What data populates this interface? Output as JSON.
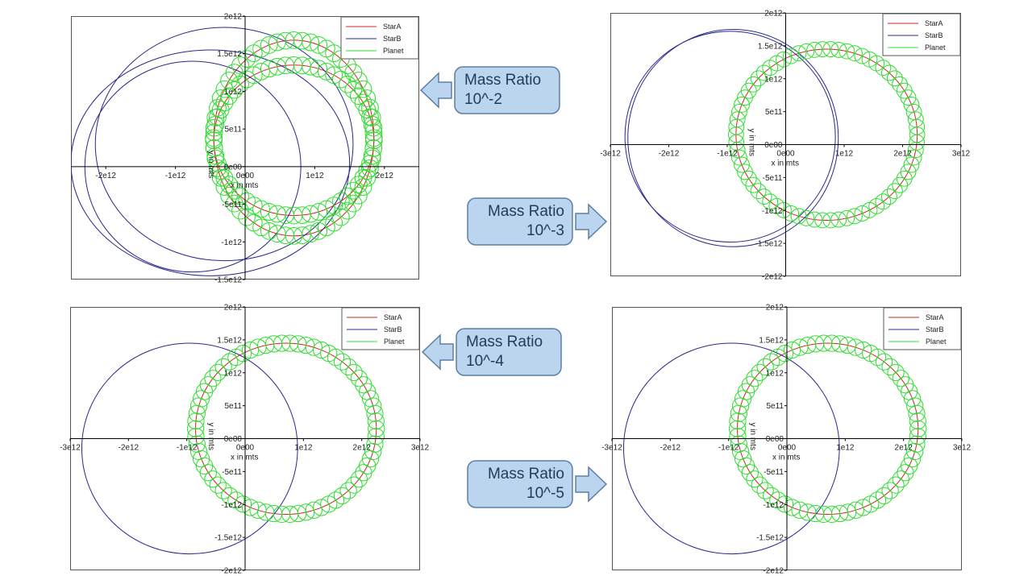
{
  "legend": {
    "starA_label": "StarA",
    "starB_label": "StarB",
    "planet_label": "Planet"
  },
  "colors": {
    "starA": "#cc2a1c",
    "starB": "#28288c",
    "planet": "#2edc2e",
    "callout_fill": "#bcd5ee",
    "callout_border": "#5b7fa6"
  },
  "callouts": [
    {
      "line1": "Mass Ratio",
      "line2": "10^-2",
      "arrow": "left"
    },
    {
      "line1": "Mass Ratio",
      "line2": "10^-3",
      "arrow": "right"
    },
    {
      "line1": "Mass Ratio",
      "line2": "10^-4",
      "arrow": "left"
    },
    {
      "line1": "Mass Ratio",
      "line2": "10^-5",
      "arrow": "right"
    }
  ],
  "chart_data": [
    {
      "type": "line",
      "xlabel": "x in mts",
      "ylabel": "y in mts",
      "xlim": [
        -2500000000000.0,
        2500000000000.0
      ],
      "ylim": [
        -1500000000000.0,
        2000000000000.0
      ],
      "xticks": [
        -2000000000000.0,
        -1000000000000.0,
        0,
        1000000000000.0,
        2000000000000.0
      ],
      "xticklabels": [
        "-2e12",
        "-1e12",
        "0e00",
        "1e12",
        "2e12"
      ],
      "yticks": [
        -1500000000000.0,
        -1000000000000.0,
        -500000000000.0,
        0,
        500000000000.0,
        1000000000000.0,
        1500000000000.0,
        2000000000000.0
      ],
      "yticklabels": [
        "-1.5e12",
        "-1e12",
        "-5e11",
        "0e00",
        "5e11",
        "1e12",
        "1.5e12",
        "2e12"
      ],
      "legend_position": "top-right",
      "series": [
        {
          "name": "StarA",
          "orbits": [
            {
              "cx": 700000000000.0,
              "cy": 350000000000.0,
              "rx": 1150000000000.0,
              "ry": 1000000000000.0
            },
            {
              "cx": 700000000000.0,
              "cy": 380000000000.0,
              "rx": 1150000000000.0,
              "ry": 1300000000000.0
            }
          ]
        },
        {
          "name": "StarB",
          "orbits": [
            {
              "cx": -300000000000.0,
              "cy": 300000000000.0,
              "rx": 1850000000000.0,
              "ry": 1550000000000.0
            },
            {
              "cx": -500000000000.0,
              "cy": 50000000000.0,
              "rx": 2000000000000.0,
              "ry": 1500000000000.0
            },
            {
              "cx": -750000000000.0,
              "cy": 0.0,
              "rx": 1550000000000.0,
              "ry": 1400000000000.0
            }
          ]
        },
        {
          "name": "Planet",
          "orbits": [
            {
              "cx": 700000000000.0,
              "cy": 350000000000.0,
              "rx": 1150000000000.0,
              "ry": 1000000000000.0,
              "loops": 60,
              "loop_radius": 120000000000.0
            },
            {
              "cx": 700000000000.0,
              "cy": 380000000000.0,
              "rx": 1150000000000.0,
              "ry": 1300000000000.0,
              "loops": 60,
              "loop_radius": 120000000000.0
            }
          ]
        }
      ]
    },
    {
      "type": "line",
      "xlabel": "x in mts",
      "ylabel": "y in mts",
      "xlim": [
        -3000000000000.0,
        3000000000000.0
      ],
      "ylim": [
        -2000000000000.0,
        2000000000000.0
      ],
      "xticks": [
        -3000000000000.0,
        -2000000000000.0,
        -1000000000000.0,
        0,
        1000000000000.0,
        2000000000000.0,
        3000000000000.0
      ],
      "xticklabels": [
        "-3e12",
        "-2e12",
        "-1e12",
        "0e00",
        "1e12",
        "2e12",
        "3e12"
      ],
      "yticks": [
        -2000000000000.0,
        -1500000000000.0,
        -1000000000000.0,
        -500000000000.0,
        0,
        500000000000.0,
        1000000000000.0,
        1500000000000.0,
        2000000000000.0
      ],
      "yticklabels": [
        "-2e12",
        "-1.5e12",
        "-1e12",
        "-5e11",
        "0e00",
        "5e11",
        "1e12",
        "1.5e12",
        "2e12"
      ],
      "legend_position": "top-right",
      "series": [
        {
          "name": "StarA",
          "orbits": [
            {
              "cx": 700000000000.0,
              "cy": 150000000000.0,
              "rx": 1550000000000.0,
              "ry": 1300000000000.0
            }
          ]
        },
        {
          "name": "StarB",
          "orbits": [
            {
              "cx": -950000000000.0,
              "cy": 120000000000.0,
              "rx": 1800000000000.0,
              "ry": 1600000000000.0
            },
            {
              "cx": -900000000000.0,
              "cy": 100000000000.0,
              "rx": 1800000000000.0,
              "ry": 1650000000000.0
            }
          ]
        },
        {
          "name": "Planet",
          "orbits": [
            {
              "cx": 700000000000.0,
              "cy": 150000000000.0,
              "rx": 1550000000000.0,
              "ry": 1300000000000.0,
              "loops": 70,
              "loop_radius": 130000000000.0
            }
          ]
        }
      ]
    },
    {
      "type": "line",
      "xlabel": "x in mts",
      "ylabel": "y in mts",
      "xlim": [
        -3000000000000.0,
        3000000000000.0
      ],
      "ylim": [
        -2000000000000.0,
        2000000000000.0
      ],
      "xticks": [
        -3000000000000.0,
        -2000000000000.0,
        -1000000000000.0,
        0,
        1000000000000.0,
        2000000000000.0,
        3000000000000.0
      ],
      "xticklabels": [
        "-3e12",
        "-2e12",
        "-1e12",
        "0e00",
        "1e12",
        "2e12",
        "3e12"
      ],
      "yticks": [
        -2000000000000.0,
        -1500000000000.0,
        -1000000000000.0,
        -500000000000.0,
        0,
        500000000000.0,
        1000000000000.0,
        1500000000000.0,
        2000000000000.0
      ],
      "yticklabels": [
        "-2e12",
        "-1.5e12",
        "-1e12",
        "-5e11",
        "0e00",
        "5e11",
        "1e12",
        "1.5e12",
        "2e12"
      ],
      "legend_position": "top-right",
      "series": [
        {
          "name": "StarA",
          "orbits": [
            {
              "cx": 700000000000.0,
              "cy": 150000000000.0,
              "rx": 1550000000000.0,
              "ry": 1300000000000.0
            }
          ]
        },
        {
          "name": "StarB",
          "orbits": [
            {
              "cx": -950000000000.0,
              "cy": -150000000000.0,
              "rx": 1850000000000.0,
              "ry": 1600000000000.0
            }
          ]
        },
        {
          "name": "Planet",
          "orbits": [
            {
              "cx": 700000000000.0,
              "cy": 150000000000.0,
              "rx": 1550000000000.0,
              "ry": 1300000000000.0,
              "loops": 70,
              "loop_radius": 140000000000.0
            }
          ]
        }
      ]
    },
    {
      "type": "line",
      "xlabel": "x in mts",
      "ylabel": "y in mts",
      "xlim": [
        -3000000000000.0,
        3000000000000.0
      ],
      "ylim": [
        -2000000000000.0,
        2000000000000.0
      ],
      "xticks": [
        -3000000000000.0,
        -2000000000000.0,
        -1000000000000.0,
        0,
        1000000000000.0,
        2000000000000.0,
        3000000000000.0
      ],
      "xticklabels": [
        "-3e12",
        "-2e12",
        "-1e12",
        "0e00",
        "1e12",
        "2e12",
        "3e12"
      ],
      "yticks": [
        -2000000000000.0,
        -1500000000000.0,
        -1000000000000.0,
        -500000000000.0,
        0,
        500000000000.0,
        1000000000000.0,
        1500000000000.0,
        2000000000000.0
      ],
      "yticklabels": [
        "-2e12",
        "-1.5e12",
        "-1e12",
        "-5e11",
        "0e00",
        "5e11",
        "1e12",
        "1.5e12",
        "2e12"
      ],
      "legend_position": "top-right",
      "series": [
        {
          "name": "StarA",
          "orbits": [
            {
              "cx": 700000000000.0,
              "cy": 150000000000.0,
              "rx": 1550000000000.0,
              "ry": 1300000000000.0
            }
          ]
        },
        {
          "name": "StarB",
          "orbits": [
            {
              "cx": -950000000000.0,
              "cy": -150000000000.0,
              "rx": 1850000000000.0,
              "ry": 1600000000000.0
            }
          ]
        },
        {
          "name": "Planet",
          "orbits": [
            {
              "cx": 700000000000.0,
              "cy": 150000000000.0,
              "rx": 1550000000000.0,
              "ry": 1300000000000.0,
              "loops": 70,
              "loop_radius": 140000000000.0
            }
          ]
        }
      ]
    }
  ]
}
